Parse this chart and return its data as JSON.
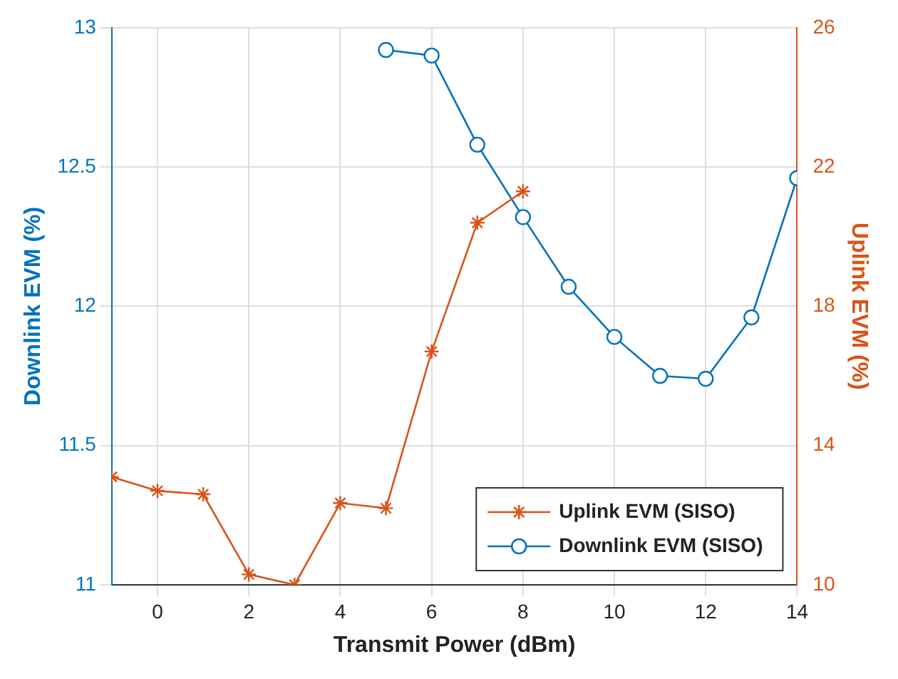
{
  "chart_data": {
    "type": "line",
    "xlabel": "Transmit Power (dBm)",
    "ylabel": "Downlink EVM (%)",
    "y2label": "Uplink EVM (%)",
    "x": [
      -1,
      0,
      1,
      2,
      3,
      4,
      5,
      6,
      7,
      8,
      9,
      10,
      11,
      12,
      13,
      14
    ],
    "series": [
      {
        "name": "Uplink EVM (SISO)",
        "color": "#d95319",
        "axis": "y2",
        "marker": "cross",
        "values": [
          13.1,
          12.7,
          12.6,
          10.3,
          10.0,
          12.35,
          12.2,
          16.7,
          20.4,
          21.3,
          null,
          null,
          null,
          null,
          null,
          null
        ]
      },
      {
        "name": "Downlink EVM (SISO)",
        "color": "#0072bd",
        "axis": "y",
        "marker": "circle",
        "values": [
          null,
          null,
          null,
          null,
          null,
          null,
          12.92,
          12.9,
          12.58,
          12.32,
          12.07,
          11.89,
          11.75,
          11.74,
          11.96,
          12.46
        ]
      }
    ],
    "xlim": [
      -1,
      14
    ],
    "xticks": [
      0,
      2,
      4,
      6,
      8,
      10,
      12,
      14
    ],
    "ylim": [
      11,
      13
    ],
    "yticks": [
      11,
      11.5,
      12,
      12.5,
      13
    ],
    "y2lim": [
      10,
      26
    ],
    "y2ticks": [
      10,
      14,
      18,
      22,
      26
    ],
    "grid": true,
    "legend": "bottom right",
    "line_style": "solid"
  }
}
